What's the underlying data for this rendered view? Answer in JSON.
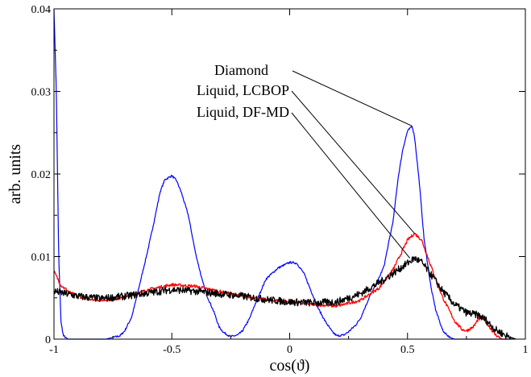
{
  "chart_data": {
    "type": "line",
    "title": "",
    "xlabel": "cos(ϑ)",
    "ylabel": "arb. units",
    "xlim": [
      -1,
      1
    ],
    "ylim": [
      0,
      0.04
    ],
    "x_ticks": [
      {
        "value": -1,
        "label": "-1"
      },
      {
        "value": -0.5,
        "label": "-0.5"
      },
      {
        "value": 0,
        "label": "0"
      },
      {
        "value": 0.5,
        "label": "0.5"
      },
      {
        "value": 1,
        "label": "1"
      }
    ],
    "y_ticks": [
      {
        "value": 0,
        "label": "0"
      },
      {
        "value": 0.01,
        "label": "0.01"
      },
      {
        "value": 0.02,
        "label": "0.02"
      },
      {
        "value": 0.03,
        "label": "0.03"
      },
      {
        "value": 0.04,
        "label": "0.04"
      }
    ],
    "grid": false,
    "legend": "none",
    "series": [
      {
        "name": "Diamond",
        "color": "#0000ff",
        "points": [
          [
            -1.0,
            0.04
          ],
          [
            -0.99,
            0.03
          ],
          [
            -0.98,
            0.01
          ],
          [
            -0.97,
            0.002
          ],
          [
            -0.96,
            0.0004
          ],
          [
            -0.94,
            0.0
          ],
          [
            -0.78,
            0.0
          ],
          [
            -0.72,
            0.0004
          ],
          [
            -0.7,
            0.001
          ],
          [
            -0.67,
            0.0027
          ],
          [
            -0.65,
            0.005
          ],
          [
            -0.62,
            0.0086
          ],
          [
            -0.6,
            0.011
          ],
          [
            -0.575,
            0.0143
          ],
          [
            -0.55,
            0.0178
          ],
          [
            -0.53,
            0.0193
          ],
          [
            -0.5,
            0.0198
          ],
          [
            -0.48,
            0.0192
          ],
          [
            -0.46,
            0.0178
          ],
          [
            -0.43,
            0.015
          ],
          [
            -0.4,
            0.0105
          ],
          [
            -0.37,
            0.007
          ],
          [
            -0.35,
            0.0052
          ],
          [
            -0.32,
            0.0032
          ],
          [
            -0.3,
            0.0015
          ],
          [
            -0.28,
            0.0008
          ],
          [
            -0.25,
            0.0003
          ],
          [
            -0.22,
            0.0005
          ],
          [
            -0.2,
            0.001
          ],
          [
            -0.17,
            0.0025
          ],
          [
            -0.15,
            0.004
          ],
          [
            -0.12,
            0.006
          ],
          [
            -0.1,
            0.0073
          ],
          [
            -0.05,
            0.0086
          ],
          [
            0.0,
            0.0093
          ],
          [
            0.03,
            0.0092
          ],
          [
            0.06,
            0.008
          ],
          [
            0.1,
            0.0052
          ],
          [
            0.12,
            0.0038
          ],
          [
            0.15,
            0.0022
          ],
          [
            0.18,
            0.0009
          ],
          [
            0.2,
            0.0004
          ],
          [
            0.23,
            0.0005
          ],
          [
            0.25,
            0.0009
          ],
          [
            0.28,
            0.0017
          ],
          [
            0.3,
            0.0025
          ],
          [
            0.34,
            0.0052
          ],
          [
            0.37,
            0.0068
          ],
          [
            0.4,
            0.0088
          ],
          [
            0.44,
            0.0145
          ],
          [
            0.46,
            0.0195
          ],
          [
            0.48,
            0.023
          ],
          [
            0.5,
            0.0252
          ],
          [
            0.52,
            0.0258
          ],
          [
            0.53,
            0.0245
          ],
          [
            0.55,
            0.019
          ],
          [
            0.57,
            0.0122
          ],
          [
            0.6,
            0.0062
          ],
          [
            0.62,
            0.0035
          ],
          [
            0.65,
            0.001
          ],
          [
            0.68,
            0.0002
          ],
          [
            0.7,
            0.0
          ],
          [
            0.95,
            0.0
          ]
        ]
      },
      {
        "name": "Liquid, LCBOP",
        "color": "#ff0000",
        "points": [
          [
            -1.0,
            0.0082
          ],
          [
            -0.97,
            0.0065
          ],
          [
            -0.93,
            0.0056
          ],
          [
            -0.88,
            0.005
          ],
          [
            -0.8,
            0.0047
          ],
          [
            -0.7,
            0.005
          ],
          [
            -0.6,
            0.006
          ],
          [
            -0.5,
            0.0066
          ],
          [
            -0.4,
            0.0064
          ],
          [
            -0.3,
            0.0058
          ],
          [
            -0.2,
            0.0052
          ],
          [
            -0.1,
            0.0048
          ],
          [
            0.0,
            0.0045
          ],
          [
            0.1,
            0.0042
          ],
          [
            0.2,
            0.004
          ],
          [
            0.3,
            0.0047
          ],
          [
            0.38,
            0.0062
          ],
          [
            0.44,
            0.0085
          ],
          [
            0.48,
            0.0108
          ],
          [
            0.5,
            0.012
          ],
          [
            0.53,
            0.0128
          ],
          [
            0.56,
            0.012
          ],
          [
            0.6,
            0.0088
          ],
          [
            0.65,
            0.005
          ],
          [
            0.7,
            0.0022
          ],
          [
            0.73,
            0.0012
          ],
          [
            0.75,
            0.001
          ],
          [
            0.78,
            0.0015
          ],
          [
            0.8,
            0.0024
          ],
          [
            0.82,
            0.0025
          ],
          [
            0.84,
            0.0018
          ],
          [
            0.87,
            0.0006
          ],
          [
            0.9,
            0.0
          ],
          [
            0.93,
            0.0
          ]
        ]
      },
      {
        "name": "Liquid, DF-MD",
        "color": "#000000",
        "points": [
          [
            -1.0,
            0.0058
          ],
          [
            -0.95,
            0.0055
          ],
          [
            -0.9,
            0.0052
          ],
          [
            -0.8,
            0.0049
          ],
          [
            -0.7,
            0.0052
          ],
          [
            -0.6,
            0.0056
          ],
          [
            -0.5,
            0.006
          ],
          [
            -0.4,
            0.0058
          ],
          [
            -0.3,
            0.0055
          ],
          [
            -0.2,
            0.0052
          ],
          [
            -0.1,
            0.0048
          ],
          [
            0.0,
            0.0045
          ],
          [
            0.1,
            0.0044
          ],
          [
            0.2,
            0.0045
          ],
          [
            0.3,
            0.0055
          ],
          [
            0.4,
            0.0072
          ],
          [
            0.48,
            0.0088
          ],
          [
            0.53,
            0.0098
          ],
          [
            0.56,
            0.0093
          ],
          [
            0.6,
            0.0078
          ],
          [
            0.65,
            0.0058
          ],
          [
            0.7,
            0.0042
          ],
          [
            0.75,
            0.0032
          ],
          [
            0.8,
            0.0029
          ],
          [
            0.83,
            0.0024
          ],
          [
            0.87,
            0.0012
          ],
          [
            0.92,
            0.0004
          ],
          [
            0.96,
            0.0
          ]
        ]
      }
    ],
    "annotations": [
      {
        "text": "Diamond",
        "target_series": "Diamond",
        "target": [
          0.52,
          0.0258
        ]
      },
      {
        "text": "Liquid, LCBOP",
        "target_series": "Liquid, LCBOP",
        "target": [
          0.53,
          0.0128
        ]
      },
      {
        "text": "Liquid, DF-MD",
        "target_series": "Liquid, DF-MD",
        "target": [
          0.51,
          0.0098
        ]
      }
    ]
  }
}
